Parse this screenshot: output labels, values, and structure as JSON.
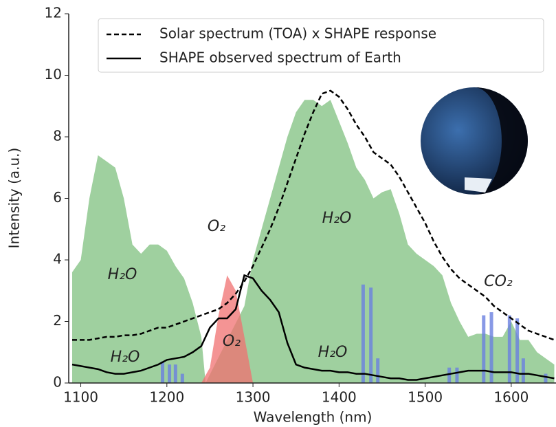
{
  "chart_data": {
    "type": "line",
    "x_label": "Wavelength (nm)",
    "y_label": "Intensity (a.u.)",
    "xlim": [
      1086,
      1652
    ],
    "ylim": [
      0,
      12
    ],
    "xticks": [
      1100,
      1200,
      1300,
      1400,
      1500,
      1600
    ],
    "yticks": [
      0,
      2,
      4,
      6,
      8,
      10,
      12
    ],
    "x": [
      1090,
      1100,
      1110,
      1120,
      1130,
      1140,
      1150,
      1160,
      1170,
      1180,
      1190,
      1200,
      1210,
      1220,
      1230,
      1240,
      1250,
      1260,
      1270,
      1280,
      1290,
      1300,
      1310,
      1320,
      1330,
      1340,
      1350,
      1360,
      1370,
      1380,
      1390,
      1400,
      1410,
      1420,
      1430,
      1440,
      1450,
      1460,
      1470,
      1480,
      1490,
      1500,
      1510,
      1520,
      1530,
      1540,
      1550,
      1560,
      1570,
      1580,
      1590,
      1600,
      1610,
      1620,
      1630,
      1640,
      1650
    ],
    "series": [
      {
        "name": "Solar spectrum (TOA) x SHAPE response",
        "color": "#000000",
        "dash": true,
        "values": [
          1.4,
          1.4,
          1.4,
          1.45,
          1.5,
          1.5,
          1.55,
          1.55,
          1.6,
          1.7,
          1.8,
          1.8,
          1.9,
          2.0,
          2.1,
          2.2,
          2.3,
          2.4,
          2.6,
          2.9,
          3.3,
          3.8,
          4.4,
          5.0,
          5.7,
          6.5,
          7.3,
          8.1,
          8.8,
          9.4,
          9.5,
          9.3,
          8.9,
          8.4,
          8.0,
          7.5,
          7.3,
          7.1,
          6.7,
          6.2,
          5.7,
          5.2,
          4.6,
          4.1,
          3.7,
          3.4,
          3.2,
          3.0,
          2.8,
          2.5,
          2.3,
          2.1,
          1.9,
          1.7,
          1.6,
          1.5,
          1.4
        ]
      },
      {
        "name": "SHAPE observed spectrum of Earth",
        "color": "#000000",
        "dash": false,
        "values": [
          0.6,
          0.55,
          0.5,
          0.45,
          0.35,
          0.3,
          0.3,
          0.35,
          0.4,
          0.5,
          0.6,
          0.75,
          0.8,
          0.85,
          1.0,
          1.2,
          1.8,
          2.1,
          2.1,
          2.4,
          3.5,
          3.4,
          3.0,
          2.7,
          2.3,
          1.3,
          0.6,
          0.5,
          0.45,
          0.4,
          0.4,
          0.35,
          0.35,
          0.3,
          0.3,
          0.25,
          0.2,
          0.15,
          0.15,
          0.1,
          0.1,
          0.15,
          0.2,
          0.25,
          0.3,
          0.35,
          0.4,
          0.4,
          0.4,
          0.35,
          0.35,
          0.35,
          0.3,
          0.3,
          0.25,
          0.2,
          0.15
        ]
      }
    ],
    "areas": [
      {
        "color": "#7fc07f",
        "x": [
          1090,
          1100,
          1110,
          1120,
          1130,
          1140,
          1150,
          1160,
          1170,
          1180,
          1190,
          1200,
          1210,
          1220,
          1230,
          1240,
          1245,
          1290,
          1300,
          1310,
          1320,
          1330,
          1340,
          1350,
          1360,
          1370,
          1380,
          1390,
          1400,
          1410,
          1420,
          1430,
          1440,
          1450,
          1460,
          1470,
          1480,
          1490,
          1500,
          1510,
          1520,
          1530,
          1540,
          1550,
          1560,
          1570,
          1580,
          1590,
          1600,
          1610,
          1620,
          1630,
          1640,
          1650
        ],
        "values": [
          3.6,
          4.0,
          6.0,
          7.4,
          7.2,
          7.0,
          6.0,
          4.5,
          4.2,
          4.5,
          4.5,
          4.3,
          3.8,
          3.4,
          2.6,
          1.5,
          0,
          2.5,
          4.0,
          5.0,
          6.0,
          7.0,
          8.0,
          8.8,
          9.2,
          9.2,
          9.0,
          9.2,
          8.5,
          7.8,
          7.0,
          6.6,
          6.0,
          6.2,
          6.3,
          5.5,
          4.5,
          4.2,
          4.0,
          3.8,
          3.5,
          2.6,
          2.0,
          1.5,
          1.6,
          1.6,
          1.5,
          1.5,
          2.0,
          1.4,
          1.4,
          1.0,
          0.8,
          0.6
        ]
      },
      {
        "color": "#f07070",
        "x": [
          1240,
          1250,
          1260,
          1270,
          1280,
          1290,
          1300
        ],
        "values": [
          0,
          0.5,
          2.2,
          3.5,
          3.0,
          1.5,
          0
        ]
      }
    ],
    "bars": {
      "color": "#6a7fe0",
      "x": [
        1195,
        1203,
        1210,
        1218,
        1428,
        1437,
        1445,
        1528,
        1537,
        1568,
        1577,
        1598,
        1607,
        1614,
        1640
      ],
      "values": [
        0.7,
        0.6,
        0.6,
        0.3,
        3.2,
        3.1,
        0.8,
        0.5,
        0.5,
        2.2,
        2.3,
        2.2,
        2.1,
        0.8,
        0.3
      ]
    },
    "annotations": [
      {
        "text": "H₂O",
        "color": "#3aa83a"
      },
      {
        "text": "O₂",
        "color": "#f05050"
      },
      {
        "text": "H₂O",
        "color": "#3aa83a"
      },
      {
        "text": "CO₂",
        "color": "#4a5ae8"
      },
      {
        "text": "O₂",
        "color": "#000000"
      },
      {
        "text": "H₂O",
        "color": "#000000"
      },
      {
        "text": "H₂O",
        "color": "#000000"
      }
    ]
  }
}
